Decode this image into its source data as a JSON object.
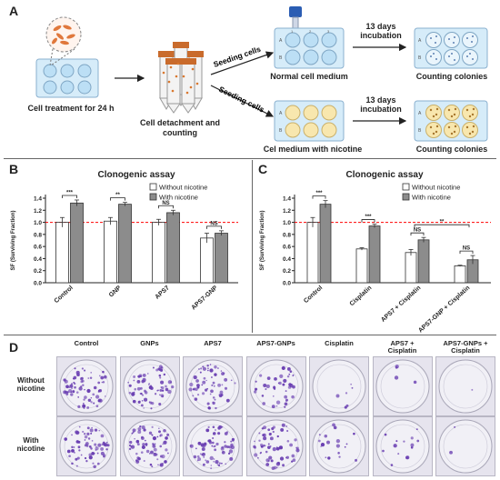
{
  "panel_a": {
    "label": "A",
    "step1": "Cell treatment for 24 h",
    "step2_line1": "Cell detachment and",
    "step2_line2": "counting",
    "seed_top": "Seeding cells",
    "seed_bottom": "Seeding cells",
    "medium_top": "Normal cell medium",
    "medium_bottom": "Cel medium with nicotine",
    "incubation_top_line1": "13 days",
    "incubation_top_line2": "incubation",
    "incubation_bottom_line1": "13 days",
    "incubation_bottom_line2": "incubation",
    "count_top": "Counting colonies",
    "count_bottom": "Counting colonies",
    "well_row_a": "A",
    "well_row_b": "B",
    "well_col_1": "1",
    "well_col_2": "2",
    "well_col_3": "3"
  },
  "panel_b": {
    "label": "B"
  },
  "panel_c": {
    "label": "C"
  },
  "panel_d": {
    "label": "D",
    "columns": [
      "Control",
      "GNPs",
      "APS7",
      "APS7-GNPs",
      "Cisplatin",
      "APS7 + Cisplatin",
      "APS7-GNPs + Cisplatin"
    ],
    "column_lines": [
      [
        "Control"
      ],
      [
        "GNPs"
      ],
      [
        "APS7"
      ],
      [
        "APS7-GNPs"
      ],
      [
        "Cisplatin"
      ],
      [
        "APS7 +",
        "Cisplatin"
      ],
      [
        "APS7-GNPs +",
        "Cisplatin"
      ]
    ],
    "rows": [
      [
        "Without",
        "nicotine"
      ],
      [
        "With",
        "nicotine"
      ]
    ],
    "colony_density_without": [
      1.0,
      1.0,
      0.85,
      0.6,
      0.08,
      0.06,
      0.02
    ],
    "colony_density_with": [
      1.0,
      1.0,
      1.0,
      0.9,
      0.25,
      0.2,
      0.03
    ],
    "colony_color": "#6a3fb2",
    "dish_color": "#e6e4ee"
  },
  "colors": {
    "without": "#ffffff",
    "with": "#8c8c8c",
    "reference_line": "#ff0000",
    "plate": "#d6ecf9"
  },
  "chart_data": [
    {
      "type": "bar",
      "panel": "B",
      "title": "Clonogenic assay",
      "ylabel": "SF (Surviving Fraction)",
      "xlabel": "",
      "ylim": [
        0,
        1.4
      ],
      "yticks": [
        "0.0",
        "0.2",
        "0.4",
        "0.6",
        "0.8",
        "1.0",
        "1.2",
        "1.4"
      ],
      "categories": [
        "Control",
        "GNP",
        "APS7",
        "APS7-GNP"
      ],
      "series": [
        {
          "name": "Without nicotine",
          "values": [
            1.0,
            1.02,
            1.0,
            0.74
          ],
          "errors": [
            0.08,
            0.06,
            0.05,
            0.08
          ]
        },
        {
          "name": "With nicotine",
          "values": [
            1.32,
            1.3,
            1.16,
            0.82
          ],
          "errors": [
            0.05,
            0.03,
            0.04,
            0.04
          ]
        }
      ],
      "reference_line": 1.0,
      "legend": "top-right",
      "annotations": [
        {
          "category": "Control",
          "text": "***"
        },
        {
          "category": "GNP",
          "text": "**"
        },
        {
          "category": "APS7",
          "text": "NS"
        },
        {
          "category": "APS7-GNP",
          "text": "NS"
        }
      ]
    },
    {
      "type": "bar",
      "panel": "C",
      "title": "Clonogenic assay",
      "ylabel": "SF (Surviving Fraction)",
      "xlabel": "",
      "ylim": [
        0,
        1.4
      ],
      "yticks": [
        "0.0",
        "0.2",
        "0.4",
        "0.6",
        "0.8",
        "1.0",
        "1.2",
        "1.4"
      ],
      "categories": [
        "Control",
        "Cisplatin",
        "APS7 + Cisplatin",
        "APS7-GNP + Cisplatin"
      ],
      "series": [
        {
          "name": "Without nicotine",
          "values": [
            1.0,
            0.56,
            0.5,
            0.28
          ],
          "errors": [
            0.08,
            0.02,
            0.05,
            0.01
          ]
        },
        {
          "name": "With nicotine",
          "values": [
            1.3,
            0.94,
            0.71,
            0.38
          ],
          "errors": [
            0.06,
            0.03,
            0.04,
            0.07
          ]
        }
      ],
      "reference_line": 1.0,
      "legend": "top-right",
      "annotations": [
        {
          "category": "Control",
          "text": "***"
        },
        {
          "category": "Cisplatin",
          "text": "***"
        },
        {
          "category": "APS7 + Cisplatin",
          "text": "NS"
        },
        {
          "category": "APS7-GNP + Cisplatin",
          "text": "NS"
        },
        {
          "between": [
            "APS7 + Cisplatin",
            "APS7-GNP + Cisplatin"
          ],
          "text": "**"
        }
      ]
    }
  ]
}
